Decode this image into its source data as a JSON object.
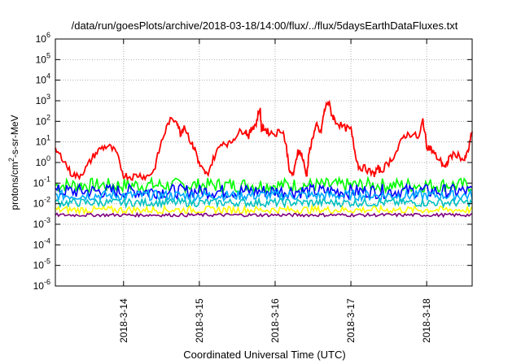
{
  "chart_data": {
    "type": "line",
    "title": "/data/run/goesPlots/archive/2018-03-18/14:00/flux/../flux/5daysEarthDataFluxes.txt",
    "xlabel": "Coordinated Universal Time (UTC)",
    "ylabel": {
      "prefix": "protons/cm",
      "sup": "2",
      "suffix": "-s-sr-MeV"
    },
    "yscale": "log",
    "ylim_exp": [
      -6,
      6
    ],
    "yticks": [
      {
        "base": "10",
        "exp": "-6"
      },
      {
        "base": "10",
        "exp": "-5"
      },
      {
        "base": "10",
        "exp": "-4"
      },
      {
        "base": "10",
        "exp": "-3"
      },
      {
        "base": "10",
        "exp": "-2"
      },
      {
        "base": "10",
        "exp": "-1"
      },
      {
        "base": "10",
        "exp": "0"
      },
      {
        "base": "10",
        "exp": "1"
      },
      {
        "base": "10",
        "exp": "2"
      },
      {
        "base": "10",
        "exp": "3"
      },
      {
        "base": "10",
        "exp": "4"
      },
      {
        "base": "10",
        "exp": "5"
      },
      {
        "base": "10",
        "exp": "6"
      }
    ],
    "xlim_day": [
      13.1,
      18.6
    ],
    "xticks": [
      {
        "label": "2018-3-14",
        "day": 14
      },
      {
        "label": "2018-3-15",
        "day": 15
      },
      {
        "label": "2018-3-16",
        "day": 16
      },
      {
        "label": "2018-3-17",
        "day": 17
      },
      {
        "label": "2018-3-18",
        "day": 18
      }
    ],
    "grid": true,
    "series": [
      {
        "color": "#ff0000",
        "values_log10": {
          "day": [
            13.1,
            13.2,
            13.3,
            13.4,
            13.5,
            13.6,
            13.7,
            13.8,
            13.9,
            14.0,
            14.1,
            14.2,
            14.3,
            14.4,
            14.5,
            14.6,
            14.7,
            14.75,
            14.8,
            14.9,
            14.95,
            15.0,
            15.05,
            15.1,
            15.2,
            15.3,
            15.4,
            15.5,
            15.6,
            15.65,
            15.7,
            15.75,
            15.8,
            15.82,
            15.85,
            15.9,
            16.0,
            16.1,
            16.15,
            16.2,
            16.25,
            16.3,
            16.35,
            16.4,
            16.42,
            16.45,
            16.5,
            16.55,
            16.6,
            16.65,
            16.7,
            16.75,
            16.8,
            16.9,
            17.0,
            17.05,
            17.1,
            17.2,
            17.3,
            17.35,
            17.4,
            17.5,
            17.6,
            17.7,
            17.8,
            17.9,
            17.95,
            18.0,
            18.05,
            18.1,
            18.2,
            18.25,
            18.3,
            18.4,
            18.5,
            18.55,
            18.6
          ],
          "value": [
            0.6,
            0.2,
            -0.5,
            -0.7,
            -0.3,
            0.3,
            0.7,
            0.8,
            0.5,
            -0.6,
            -0.7,
            -0.6,
            -0.7,
            -0.4,
            1.0,
            2.0,
            2.1,
            1.4,
            1.8,
            0.9,
            0.6,
            -0.1,
            -0.4,
            -0.6,
            0.3,
            1.0,
            0.9,
            1.4,
            1.6,
            1.3,
            1.7,
            1.9,
            2.7,
            1.6,
            1.7,
            1.5,
            1.4,
            1.6,
            0.7,
            -0.6,
            -0.5,
            0.6,
            0.4,
            -0.4,
            -0.6,
            0.5,
            1.3,
            1.8,
            1.4,
            2.5,
            3.0,
            2.3,
            2.0,
            1.7,
            1.6,
            0.6,
            -0.2,
            -0.3,
            -0.6,
            -0.3,
            -0.4,
            0.0,
            0.5,
            1.3,
            1.4,
            1.2,
            2.1,
            0.8,
            0.7,
            0.4,
            0.0,
            -0.3,
            0.3,
            0.4,
            0.1,
            0.6,
            1.5
          ]
        }
      },
      {
        "color": "#00ff00",
        "level_log10": -1.1,
        "amp": 0.35
      },
      {
        "color": "#0000ff",
        "level_log10": -1.4,
        "amp": 0.35
      },
      {
        "color": "#00aaff",
        "level_log10": -1.6,
        "amp": 0.25
      },
      {
        "color": "#00c0c0",
        "level_log10": -1.95,
        "amp": 0.2
      },
      {
        "color": "#ffff00",
        "level_log10": -2.3,
        "amp": 0.18
      },
      {
        "color": "#800080",
        "level_log10": -2.55,
        "amp": 0.08
      }
    ]
  }
}
